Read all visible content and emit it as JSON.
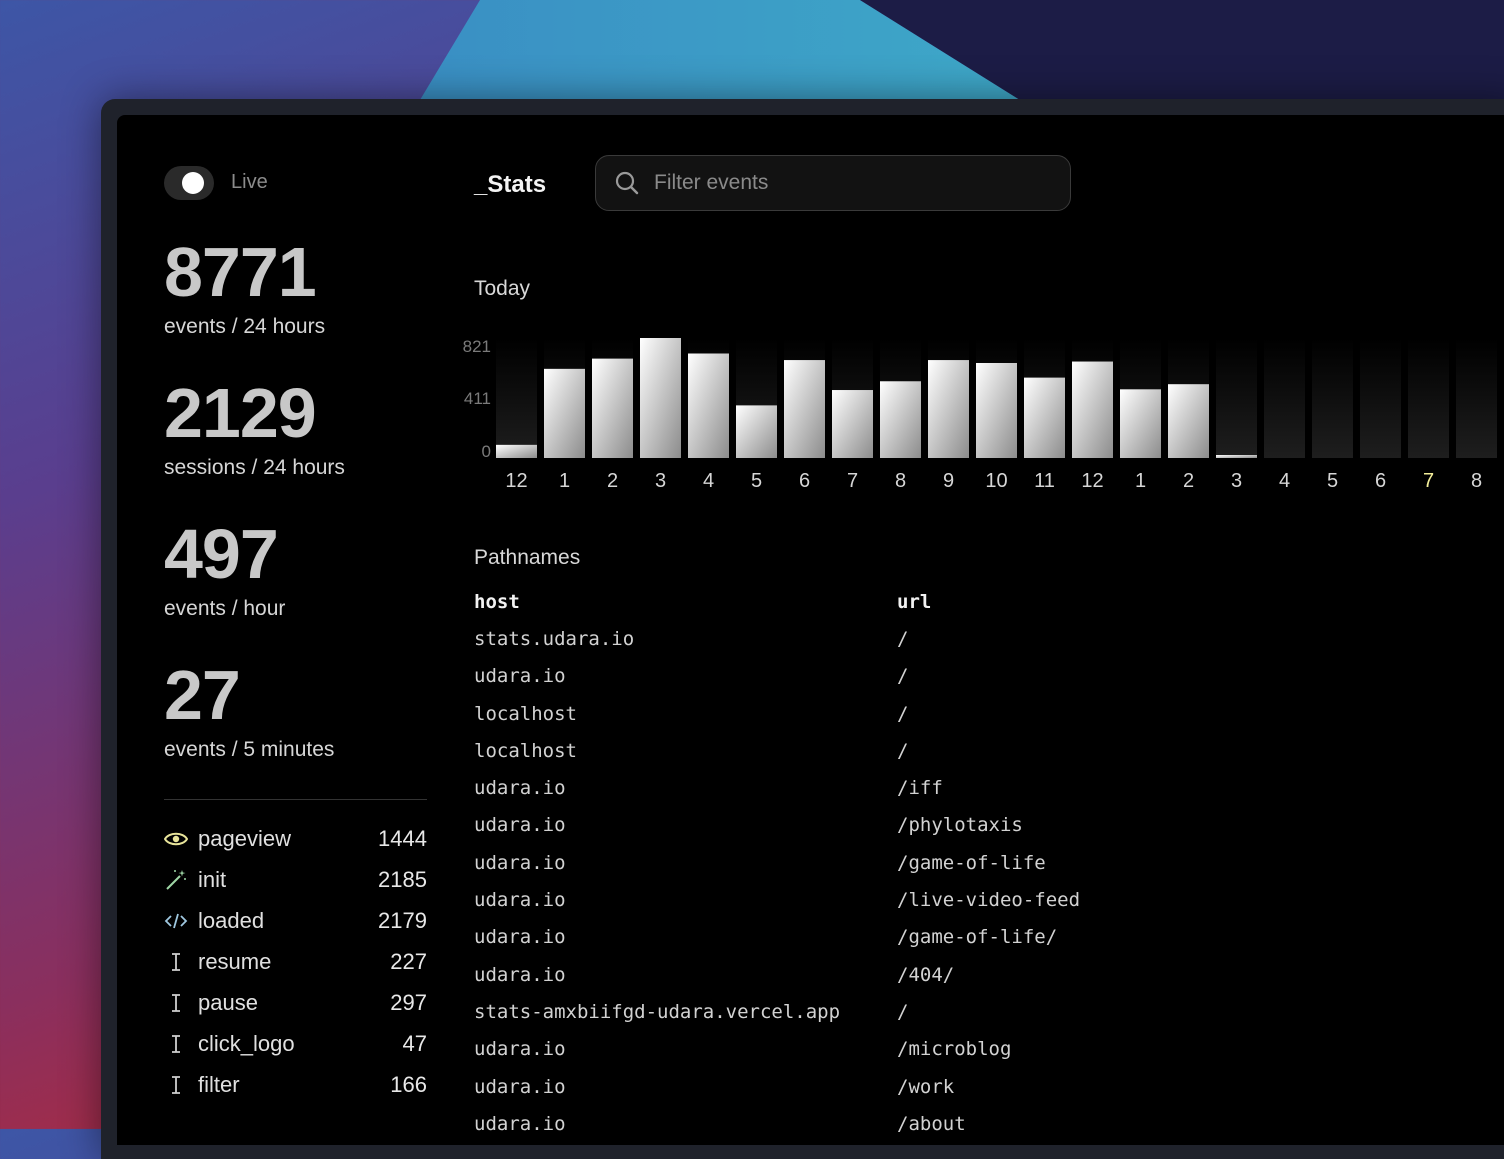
{
  "sidebar": {
    "live_label": "Live",
    "live_on": true,
    "stats": [
      {
        "value": "8771",
        "caption": "events / 24 hours"
      },
      {
        "value": "2129",
        "caption": "sessions / 24 hours"
      },
      {
        "value": "497",
        "caption": "events / hour"
      },
      {
        "value": "27",
        "caption": "events / 5 minutes"
      }
    ],
    "events": [
      {
        "icon": "eye-icon",
        "name": "pageview",
        "count": "1444"
      },
      {
        "icon": "magic-wand-icon",
        "name": "init",
        "count": "2185"
      },
      {
        "icon": "code-icon",
        "name": "loaded",
        "count": "2179"
      },
      {
        "icon": "text-cursor-icon",
        "name": "resume",
        "count": "227"
      },
      {
        "icon": "text-cursor-icon",
        "name": "pause",
        "count": "297"
      },
      {
        "icon": "text-cursor-icon",
        "name": "click_logo",
        "count": "47"
      },
      {
        "icon": "text-cursor-icon",
        "name": "filter",
        "count": "166"
      }
    ]
  },
  "header": {
    "title": "_Stats",
    "search_placeholder": "Filter events"
  },
  "chart_data": {
    "type": "bar",
    "title": "Today",
    "categories": [
      "12",
      "1",
      "2",
      "3",
      "4",
      "5",
      "6",
      "7",
      "8",
      "9",
      "10",
      "11",
      "12",
      "1",
      "2",
      "3",
      "4",
      "5",
      "6",
      "7",
      "8"
    ],
    "values": [
      90,
      610,
      680,
      821,
      715,
      360,
      670,
      465,
      525,
      670,
      650,
      550,
      660,
      470,
      505,
      20,
      0,
      0,
      0,
      0,
      0
    ],
    "yticks": [
      "821",
      "411",
      "0"
    ],
    "ylim": [
      0,
      821
    ],
    "highlight_category_index": 19,
    "highlight_color": "#f3ee9a",
    "grid": false
  },
  "pathnames": {
    "title": "Pathnames",
    "columns": [
      "host",
      "url"
    ],
    "rows": [
      [
        "stats.udara.io",
        "/"
      ],
      [
        "udara.io",
        "/"
      ],
      [
        "localhost",
        "/"
      ],
      [
        "localhost",
        "/"
      ],
      [
        "udara.io",
        "/iff"
      ],
      [
        "udara.io",
        "/phylotaxis"
      ],
      [
        "udara.io",
        "/game-of-life"
      ],
      [
        "udara.io",
        "/live-video-feed"
      ],
      [
        "udara.io",
        "/game-of-life/"
      ],
      [
        "udara.io",
        "/404/"
      ],
      [
        "stats-amxbiifgd-udara.vercel.app",
        "/"
      ],
      [
        "udara.io",
        "/microblog"
      ],
      [
        "udara.io",
        "/work"
      ],
      [
        "udara.io",
        "/about"
      ]
    ]
  },
  "colors": {
    "eye_icon": "#e8e49a",
    "wand_icon": "#9fd7a6",
    "code_icon": "#9fc8e0"
  }
}
